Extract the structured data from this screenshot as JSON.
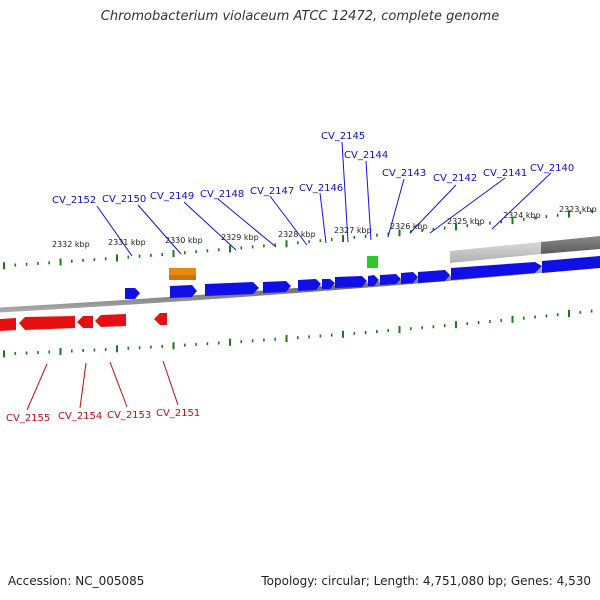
{
  "title": "Chromobacterium violaceum ATCC 12472, complete genome",
  "footer": {
    "accession": "Accession: NC_005085",
    "summary": "Topology: circular; Length: 4,751,080 bp; Genes: 4,530"
  },
  "colors": {
    "forward_gene": "#1010e6",
    "reverse_gene": "#e61010",
    "rna_gene": "#e88a10",
    "misc_feature": "#2ec82e",
    "tick": "#1a7a1a",
    "forward_label": "#0a10c8",
    "reverse_label": "#c80a0a",
    "backbone": "#808080"
  },
  "scale_labels": [
    "2332 kbp",
    "2331 kbp",
    "2330 kbp",
    "2329 kbp",
    "2328 kbp",
    "2327 kbp",
    "2326 kbp",
    "2325 kbp",
    "2324 kbp",
    "2323 kbp"
  ],
  "forward_genes": [
    "CV_2152",
    "CV_2150",
    "CV_2149",
    "CV_2148",
    "CV_2147",
    "CV_2146",
    "CV_2145",
    "CV_2144",
    "CV_2143",
    "CV_2142",
    "CV_2141",
    "CV_2140"
  ],
  "reverse_genes": [
    "CV_2155",
    "CV_2154",
    "CV_2153",
    "CV_2151"
  ]
}
